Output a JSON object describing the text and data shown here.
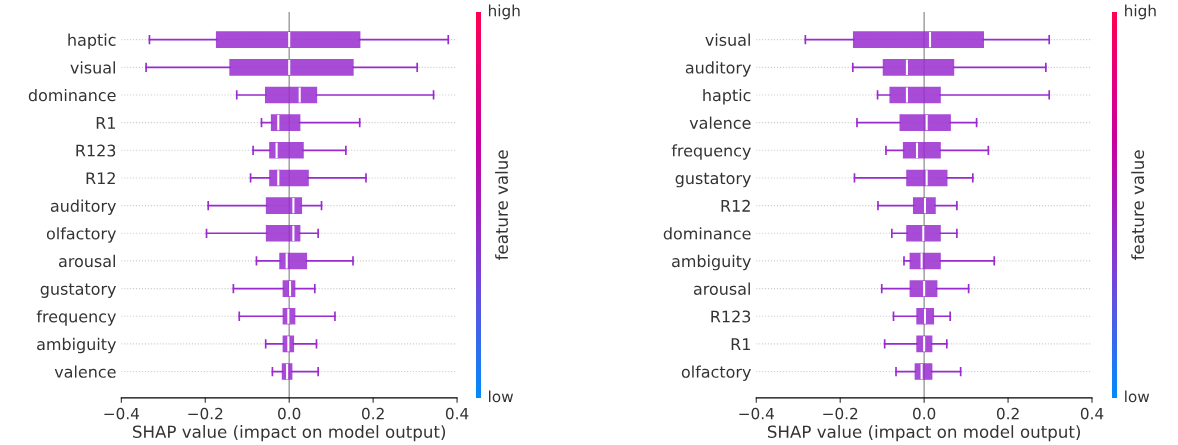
{
  "chart_data": [
    {
      "type": "box",
      "orientation": "horizontal",
      "xlabel": "SHAP value (impact on model output)",
      "clabel": "feature value",
      "annotations": [
        "low",
        "high"
      ],
      "categories": [
        "haptic",
        "visual",
        "dominance",
        "R1",
        "R123",
        "R12",
        "auditory",
        "olfactory",
        "arousal",
        "gustatory",
        "frequency",
        "ambiguity",
        "valence"
      ],
      "color": "#9a2ccf",
      "grid": "y",
      "ref_lines": [
        {
          "axis": "x",
          "value": 0,
          "color": "#999999"
        }
      ],
      "xlim": [
        -0.4,
        0.4
      ],
      "xticks": [
        {
          "value": -0.4,
          "label": "−0.4"
        },
        {
          "value": -0.2,
          "label": "−0.2"
        },
        {
          "value": 0,
          "label": "0.0"
        },
        {
          "value": 0.2,
          "label": "0.2"
        },
        {
          "value": 0.4,
          "label": "0.4"
        }
      ],
      "boxes": [
        {
          "low": -0.333,
          "q1": -0.173,
          "median": 0.0,
          "q3": 0.168,
          "high": 0.379
        },
        {
          "low": -0.341,
          "q1": -0.141,
          "median": 0.0,
          "q3": 0.152,
          "high": 0.305
        },
        {
          "low": -0.125,
          "q1": -0.056,
          "median": 0.025,
          "q3": 0.065,
          "high": 0.344
        },
        {
          "low": -0.066,
          "q1": -0.042,
          "median": -0.026,
          "q3": 0.025,
          "high": 0.168
        },
        {
          "low": -0.086,
          "q1": -0.046,
          "median": -0.03,
          "q3": 0.033,
          "high": 0.135
        },
        {
          "low": -0.092,
          "q1": -0.046,
          "median": -0.026,
          "q3": 0.045,
          "high": 0.183
        },
        {
          "low": -0.193,
          "q1": -0.054,
          "median": 0.01,
          "q3": 0.029,
          "high": 0.077
        },
        {
          "low": -0.197,
          "q1": -0.054,
          "median": 0.01,
          "q3": 0.025,
          "high": 0.069
        },
        {
          "low": -0.078,
          "q1": -0.022,
          "median": -0.006,
          "q3": 0.041,
          "high": 0.152
        },
        {
          "low": -0.133,
          "q1": -0.014,
          "median": 0.002,
          "q3": 0.013,
          "high": 0.061
        },
        {
          "low": -0.119,
          "q1": -0.014,
          "median": -0.002,
          "q3": 0.013,
          "high": 0.109
        },
        {
          "low": -0.056,
          "q1": -0.014,
          "median": -0.002,
          "q3": 0.01,
          "high": 0.065
        },
        {
          "low": -0.04,
          "q1": -0.016,
          "median": -0.005,
          "q3": 0.006,
          "high": 0.069
        }
      ]
    },
    {
      "type": "box",
      "orientation": "horizontal",
      "xlabel": "SHAP value (impact on model output)",
      "clabel": "feature value",
      "annotations": [
        "low",
        "high"
      ],
      "categories": [
        "visual",
        "auditory",
        "haptic",
        "valence",
        "frequency",
        "gustatory",
        "R12",
        "dominance",
        "ambiguity",
        "arousal",
        "R123",
        "R1",
        "olfactory"
      ],
      "color": "#9a2ccf",
      "grid": "y",
      "ref_lines": [
        {
          "axis": "x",
          "value": 0,
          "color": "#999999"
        }
      ],
      "xlim": [
        -0.4,
        0.4
      ],
      "xticks": [
        {
          "value": -0.4,
          "label": "−0.4"
        },
        {
          "value": -0.2,
          "label": "−0.2"
        },
        {
          "value": 0,
          "label": "0.0"
        },
        {
          "value": 0.2,
          "label": "0.2"
        },
        {
          "value": 0.4,
          "label": "0.4"
        }
      ],
      "boxes": [
        {
          "low": -0.283,
          "q1": -0.168,
          "median": 0.014,
          "q3": 0.141,
          "high": 0.298
        },
        {
          "low": -0.17,
          "q1": -0.097,
          "median": -0.041,
          "q3": 0.07,
          "high": 0.29
        },
        {
          "low": -0.111,
          "q1": -0.081,
          "median": -0.041,
          "q3": 0.038,
          "high": 0.298
        },
        {
          "low": -0.16,
          "q1": -0.057,
          "median": 0.006,
          "q3": 0.062,
          "high": 0.125
        },
        {
          "low": -0.091,
          "q1": -0.049,
          "median": -0.017,
          "q3": 0.038,
          "high": 0.153
        },
        {
          "low": -0.166,
          "q1": -0.041,
          "median": 0.006,
          "q3": 0.054,
          "high": 0.116
        },
        {
          "low": -0.11,
          "q1": -0.025,
          "median": 0.002,
          "q3": 0.026,
          "high": 0.078
        },
        {
          "low": -0.077,
          "q1": -0.041,
          "median": -0.002,
          "q3": 0.038,
          "high": 0.078
        },
        {
          "low": -0.048,
          "q1": -0.033,
          "median": -0.006,
          "q3": 0.038,
          "high": 0.167
        },
        {
          "low": -0.101,
          "q1": -0.033,
          "median": 0.0,
          "q3": 0.03,
          "high": 0.106
        },
        {
          "low": -0.073,
          "q1": -0.017,
          "median": 0.002,
          "q3": 0.022,
          "high": 0.062
        },
        {
          "low": -0.094,
          "q1": -0.017,
          "median": 0.0,
          "q3": 0.018,
          "high": 0.054
        },
        {
          "low": -0.067,
          "q1": -0.021,
          "median": -0.006,
          "q3": 0.018,
          "high": 0.087
        }
      ]
    }
  ]
}
